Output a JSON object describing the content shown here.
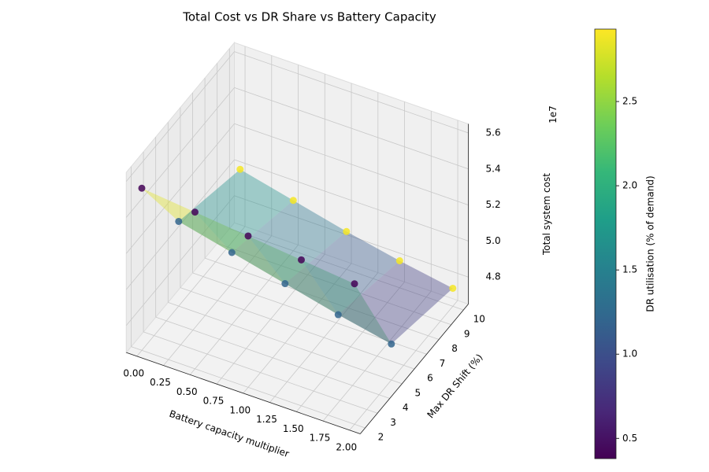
{
  "chart_data": {
    "type": "scatter3d",
    "title": "Total Cost vs DR Share vs Battery Capacity",
    "xlabel": "Battery capacity multiplier",
    "ylabel": "Max DR Shift (%)",
    "zlabel": "Total system cost",
    "z_offset_label": "1e7",
    "colorbar_label": "DR utilisation (% of demand)",
    "x": [
      0,
      0.5,
      1,
      1.5,
      2,
      0,
      0.5,
      1,
      1.5,
      2,
      0,
      0.5,
      1,
      1.5,
      2
    ],
    "y": [
      2,
      2,
      2,
      2,
      2,
      5,
      5,
      5,
      5,
      5,
      10,
      10,
      10,
      10,
      10
    ],
    "z": [
      5.55,
      5.52,
      5.49,
      5.46,
      5.43,
      5.12,
      5.05,
      4.98,
      4.91,
      4.85,
      5.0,
      4.93,
      4.86,
      4.8,
      4.75
    ],
    "c": [
      0.4,
      0.4,
      0.4,
      0.4,
      0.4,
      1.2,
      1.2,
      1.2,
      1.2,
      1.2,
      2.9,
      2.9,
      2.9,
      2.9,
      2.9
    ],
    "xlim": [
      -0.1,
      2.1
    ],
    "ylim": [
      1.6,
      10.4
    ],
    "zlim": [
      4.65,
      5.65
    ],
    "xticks": [
      {
        "value": 0,
        "label": "0.00"
      },
      {
        "value": 0.25,
        "label": "0.25"
      },
      {
        "value": 0.5,
        "label": "0.50"
      },
      {
        "value": 0.75,
        "label": "0.75"
      },
      {
        "value": 1,
        "label": "1.00"
      },
      {
        "value": 1.25,
        "label": "1.25"
      },
      {
        "value": 1.5,
        "label": "1.50"
      },
      {
        "value": 1.75,
        "label": "1.75"
      },
      {
        "value": 2,
        "label": "2.00"
      }
    ],
    "yticks": [
      2,
      3,
      4,
      5,
      6,
      7,
      8,
      9,
      10
    ],
    "zticks": [
      4.8,
      {
        "value": 5.0,
        "label": "5.0"
      },
      5.2,
      5.4,
      5.6
    ],
    "clim": [
      0.38,
      2.93
    ],
    "cticks": [
      0.5,
      {
        "value": 1.0,
        "label": "1.0"
      },
      1.5,
      {
        "value": 2.0,
        "label": "2.0"
      },
      2.5
    ],
    "colormap": [
      "#440154",
      "#482878",
      "#3e4989",
      "#31688e",
      "#26828e",
      "#1f9e89",
      "#35b779",
      "#6ece58",
      "#b5de2b",
      "#fde725"
    ],
    "grid": true
  }
}
